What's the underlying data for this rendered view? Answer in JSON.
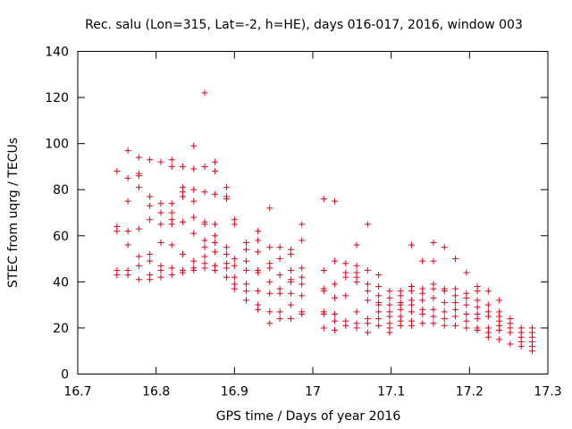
{
  "chart_data": {
    "type": "scatter",
    "title": "Rec. salu (Lon=315, Lat=-2, h=HE), days 016-017, 2016, window 003",
    "xlabel": "GPS time / Days of year 2016",
    "ylabel": "STEC from uqrg / TECUs",
    "xlim": [
      16.7,
      17.3
    ],
    "ylim": [
      0,
      140
    ],
    "xticks": [
      "16.7",
      "16.8",
      "16.9",
      "17",
      "17.1",
      "17.2",
      "17.3"
    ],
    "yticks": [
      "0",
      "20",
      "40",
      "60",
      "80",
      "100",
      "120",
      "140"
    ],
    "grid": false,
    "marker": "+",
    "color": "#e0001a",
    "series": [
      {
        "points": [
          [
            16.75,
            88
          ],
          [
            16.75,
            64
          ],
          [
            16.75,
            62
          ],
          [
            16.75,
            45
          ],
          [
            16.75,
            43
          ],
          [
            16.764,
            97
          ],
          [
            16.764,
            85
          ],
          [
            16.764,
            75
          ],
          [
            16.764,
            62
          ],
          [
            16.764,
            56
          ],
          [
            16.764,
            45
          ],
          [
            16.764,
            43
          ],
          [
            16.778,
            94
          ],
          [
            16.778,
            87
          ],
          [
            16.778,
            86
          ],
          [
            16.778,
            81
          ],
          [
            16.778,
            63
          ],
          [
            16.778,
            51
          ],
          [
            16.778,
            47
          ],
          [
            16.778,
            41
          ],
          [
            16.792,
            93
          ],
          [
            16.792,
            77
          ],
          [
            16.792,
            73
          ],
          [
            16.792,
            67
          ],
          [
            16.792,
            52
          ],
          [
            16.792,
            49
          ],
          [
            16.792,
            43
          ],
          [
            16.792,
            41
          ],
          [
            16.806,
            92
          ],
          [
            16.806,
            74
          ],
          [
            16.806,
            70
          ],
          [
            16.806,
            65
          ],
          [
            16.806,
            57
          ],
          [
            16.806,
            47
          ],
          [
            16.806,
            45
          ],
          [
            16.806,
            42
          ],
          [
            16.82,
            93
          ],
          [
            16.82,
            90
          ],
          [
            16.82,
            74
          ],
          [
            16.82,
            70
          ],
          [
            16.82,
            67
          ],
          [
            16.82,
            65
          ],
          [
            16.82,
            56
          ],
          [
            16.82,
            46
          ],
          [
            16.82,
            43
          ],
          [
            16.834,
            90
          ],
          [
            16.834,
            81
          ],
          [
            16.834,
            79
          ],
          [
            16.834,
            77
          ],
          [
            16.834,
            66
          ],
          [
            16.834,
            52
          ],
          [
            16.834,
            45
          ],
          [
            16.834,
            44
          ],
          [
            16.848,
            99
          ],
          [
            16.848,
            89
          ],
          [
            16.848,
            80
          ],
          [
            16.848,
            75
          ],
          [
            16.848,
            68
          ],
          [
            16.848,
            61
          ],
          [
            16.848,
            49
          ],
          [
            16.848,
            46
          ],
          [
            16.848,
            45
          ],
          [
            16.862,
            122
          ],
          [
            16.862,
            90
          ],
          [
            16.862,
            79
          ],
          [
            16.862,
            66
          ],
          [
            16.862,
            65
          ],
          [
            16.862,
            58
          ],
          [
            16.862,
            55
          ],
          [
            16.862,
            51
          ],
          [
            16.862,
            48
          ],
          [
            16.862,
            46
          ],
          [
            16.875,
            92
          ],
          [
            16.875,
            88
          ],
          [
            16.875,
            78
          ],
          [
            16.875,
            65
          ],
          [
            16.875,
            60
          ],
          [
            16.875,
            57
          ],
          [
            16.875,
            53
          ],
          [
            16.875,
            47
          ],
          [
            16.875,
            45
          ],
          [
            16.89,
            81
          ],
          [
            16.89,
            77
          ],
          [
            16.89,
            76
          ],
          [
            16.89,
            55
          ],
          [
            16.89,
            52
          ],
          [
            16.89,
            48
          ],
          [
            16.89,
            46
          ],
          [
            16.89,
            42
          ],
          [
            16.9,
            67
          ],
          [
            16.9,
            65
          ],
          [
            16.9,
            50
          ],
          [
            16.9,
            47
          ],
          [
            16.9,
            42
          ],
          [
            16.9,
            39
          ],
          [
            16.9,
            37
          ],
          [
            16.915,
            57
          ],
          [
            16.915,
            54
          ],
          [
            16.915,
            49
          ],
          [
            16.915,
            45
          ],
          [
            16.915,
            39
          ],
          [
            16.915,
            36
          ],
          [
            16.915,
            32
          ],
          [
            16.93,
            62
          ],
          [
            16.93,
            58
          ],
          [
            16.93,
            53
          ],
          [
            16.93,
            45
          ],
          [
            16.93,
            44
          ],
          [
            16.93,
            36
          ],
          [
            16.93,
            30
          ],
          [
            16.93,
            28
          ],
          [
            16.945,
            72
          ],
          [
            16.945,
            55
          ],
          [
            16.945,
            48
          ],
          [
            16.945,
            46
          ],
          [
            16.945,
            40
          ],
          [
            16.945,
            35
          ],
          [
            16.945,
            27
          ],
          [
            16.945,
            22
          ],
          [
            16.958,
            55
          ],
          [
            16.958,
            50
          ],
          [
            16.958,
            43
          ],
          [
            16.958,
            37
          ],
          [
            16.958,
            35
          ],
          [
            16.958,
            27
          ],
          [
            16.958,
            24
          ],
          [
            16.972,
            54
          ],
          [
            16.972,
            52
          ],
          [
            16.972,
            45
          ],
          [
            16.972,
            41
          ],
          [
            16.972,
            40
          ],
          [
            16.972,
            35
          ],
          [
            16.972,
            30
          ],
          [
            16.972,
            24
          ],
          [
            16.986,
            65
          ],
          [
            16.986,
            58
          ],
          [
            16.986,
            46
          ],
          [
            16.986,
            42
          ],
          [
            16.986,
            39
          ],
          [
            16.986,
            34
          ],
          [
            16.986,
            27
          ],
          [
            16.986,
            26
          ],
          [
            17.014,
            76
          ],
          [
            17.014,
            45
          ],
          [
            17.014,
            37
          ],
          [
            17.014,
            36
          ],
          [
            17.014,
            27
          ],
          [
            17.014,
            26
          ],
          [
            17.014,
            20
          ],
          [
            17.028,
            75
          ],
          [
            17.028,
            49
          ],
          [
            17.028,
            39
          ],
          [
            17.028,
            33
          ],
          [
            17.028,
            26
          ],
          [
            17.028,
            23
          ],
          [
            17.028,
            19
          ],
          [
            17.042,
            48
          ],
          [
            17.042,
            44
          ],
          [
            17.042,
            42
          ],
          [
            17.042,
            34
          ],
          [
            17.042,
            23
          ],
          [
            17.042,
            21
          ],
          [
            17.056,
            56
          ],
          [
            17.056,
            47
          ],
          [
            17.056,
            44
          ],
          [
            17.056,
            42
          ],
          [
            17.056,
            40
          ],
          [
            17.056,
            27
          ],
          [
            17.056,
            22
          ],
          [
            17.056,
            20
          ],
          [
            17.07,
            65
          ],
          [
            17.07,
            45
          ],
          [
            17.07,
            39
          ],
          [
            17.07,
            36
          ],
          [
            17.07,
            32
          ],
          [
            17.07,
            24
          ],
          [
            17.07,
            22
          ],
          [
            17.07,
            18
          ],
          [
            17.084,
            43
          ],
          [
            17.084,
            38
          ],
          [
            17.084,
            34
          ],
          [
            17.084,
            31
          ],
          [
            17.084,
            30
          ],
          [
            17.084,
            27
          ],
          [
            17.084,
            24
          ],
          [
            17.084,
            21
          ],
          [
            17.098,
            36
          ],
          [
            17.098,
            33
          ],
          [
            17.098,
            30
          ],
          [
            17.098,
            27
          ],
          [
            17.098,
            25
          ],
          [
            17.098,
            22
          ],
          [
            17.098,
            20
          ],
          [
            17.098,
            18
          ],
          [
            17.112,
            36
          ],
          [
            17.112,
            34
          ],
          [
            17.112,
            31
          ],
          [
            17.112,
            30
          ],
          [
            17.112,
            28
          ],
          [
            17.112,
            25
          ],
          [
            17.112,
            23
          ],
          [
            17.112,
            21
          ],
          [
            17.126,
            56
          ],
          [
            17.126,
            38
          ],
          [
            17.126,
            36
          ],
          [
            17.126,
            32
          ],
          [
            17.126,
            30
          ],
          [
            17.126,
            27
          ],
          [
            17.126,
            23
          ],
          [
            17.126,
            21
          ],
          [
            17.14,
            49
          ],
          [
            17.14,
            37
          ],
          [
            17.14,
            35
          ],
          [
            17.14,
            32
          ],
          [
            17.14,
            28
          ],
          [
            17.14,
            26
          ],
          [
            17.14,
            22
          ],
          [
            17.154,
            57
          ],
          [
            17.154,
            49
          ],
          [
            17.154,
            39
          ],
          [
            17.154,
            37
          ],
          [
            17.154,
            33
          ],
          [
            17.154,
            28
          ],
          [
            17.154,
            25
          ],
          [
            17.154,
            22
          ],
          [
            17.168,
            55
          ],
          [
            17.168,
            37
          ],
          [
            17.168,
            36
          ],
          [
            17.168,
            31
          ],
          [
            17.168,
            27
          ],
          [
            17.168,
            24
          ],
          [
            17.168,
            21
          ],
          [
            17.182,
            50
          ],
          [
            17.182,
            37
          ],
          [
            17.182,
            34
          ],
          [
            17.182,
            31
          ],
          [
            17.182,
            28
          ],
          [
            17.182,
            25
          ],
          [
            17.182,
            21
          ],
          [
            17.196,
            44
          ],
          [
            17.196,
            35
          ],
          [
            17.196,
            33
          ],
          [
            17.196,
            30
          ],
          [
            17.196,
            26
          ],
          [
            17.196,
            23
          ],
          [
            17.196,
            20
          ],
          [
            17.21,
            38
          ],
          [
            17.21,
            36
          ],
          [
            17.21,
            32
          ],
          [
            17.21,
            29
          ],
          [
            17.21,
            26
          ],
          [
            17.21,
            24
          ],
          [
            17.21,
            20
          ],
          [
            17.21,
            19
          ],
          [
            17.224,
            36
          ],
          [
            17.224,
            30
          ],
          [
            17.224,
            27
          ],
          [
            17.224,
            25
          ],
          [
            17.224,
            20
          ],
          [
            17.224,
            18
          ],
          [
            17.224,
            16
          ],
          [
            17.238,
            32
          ],
          [
            17.238,
            27
          ],
          [
            17.238,
            25
          ],
          [
            17.238,
            23
          ],
          [
            17.238,
            21
          ],
          [
            17.238,
            19
          ],
          [
            17.238,
            15
          ],
          [
            17.252,
            24
          ],
          [
            17.252,
            22
          ],
          [
            17.252,
            20
          ],
          [
            17.252,
            18
          ],
          [
            17.252,
            13
          ],
          [
            17.266,
            20
          ],
          [
            17.266,
            18
          ],
          [
            17.266,
            16
          ],
          [
            17.266,
            14
          ],
          [
            17.266,
            12
          ],
          [
            17.28,
            20
          ],
          [
            17.28,
            18
          ],
          [
            17.28,
            16
          ],
          [
            17.28,
            14
          ],
          [
            17.28,
            12
          ],
          [
            17.28,
            10
          ]
        ]
      }
    ]
  }
}
